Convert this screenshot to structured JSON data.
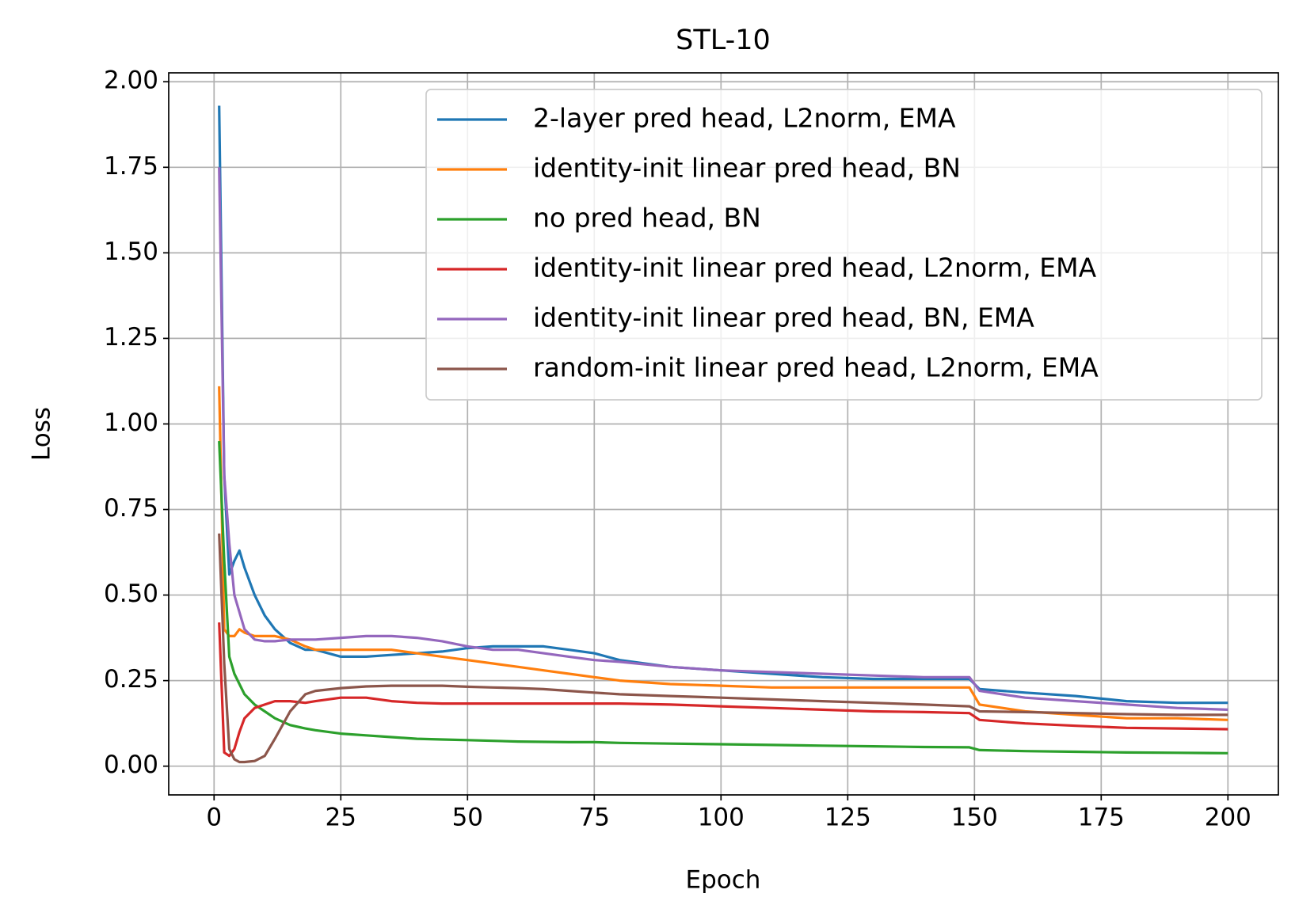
{
  "chart_data": {
    "type": "line",
    "title": "STL-10",
    "x_label": "Epoch",
    "y_label": "Loss",
    "x": [
      1,
      2,
      3,
      4,
      5,
      6,
      8,
      10,
      12,
      15,
      18,
      20,
      25,
      30,
      35,
      40,
      45,
      50,
      55,
      60,
      65,
      70,
      75,
      80,
      90,
      100,
      110,
      120,
      130,
      140,
      149,
      151,
      160,
      170,
      180,
      190,
      200
    ],
    "series": [
      {
        "name": "2-layer pred head, L2norm, EMA",
        "color": "#1f77b4",
        "values": [
          1.93,
          0.85,
          0.56,
          0.6,
          0.63,
          0.58,
          0.5,
          0.44,
          0.4,
          0.36,
          0.34,
          0.34,
          0.32,
          0.32,
          0.325,
          0.33,
          0.335,
          0.345,
          0.35,
          0.35,
          0.35,
          0.34,
          0.33,
          0.31,
          0.29,
          0.28,
          0.27,
          0.26,
          0.255,
          0.255,
          0.255,
          0.225,
          0.215,
          0.205,
          0.19,
          0.185,
          0.185
        ]
      },
      {
        "name": "identity-init linear pred head, BN",
        "color": "#ff7f0e",
        "values": [
          1.11,
          0.4,
          0.38,
          0.38,
          0.4,
          0.39,
          0.38,
          0.38,
          0.38,
          0.37,
          0.35,
          0.34,
          0.34,
          0.34,
          0.34,
          0.33,
          0.32,
          0.31,
          0.3,
          0.29,
          0.28,
          0.27,
          0.26,
          0.25,
          0.24,
          0.235,
          0.23,
          0.23,
          0.23,
          0.23,
          0.23,
          0.18,
          0.16,
          0.15,
          0.14,
          0.14,
          0.135
        ]
      },
      {
        "name": "no pred head, BN",
        "color": "#2ca02c",
        "values": [
          0.95,
          0.6,
          0.32,
          0.27,
          0.24,
          0.21,
          0.18,
          0.16,
          0.14,
          0.12,
          0.11,
          0.105,
          0.095,
          0.09,
          0.085,
          0.08,
          0.078,
          0.076,
          0.074,
          0.072,
          0.071,
          0.07,
          0.07,
          0.068,
          0.066,
          0.064,
          0.062,
          0.06,
          0.058,
          0.056,
          0.055,
          0.047,
          0.044,
          0.042,
          0.04,
          0.039,
          0.038
        ]
      },
      {
        "name": "identity-init linear pred head, L2norm, EMA",
        "color": "#d62728",
        "values": [
          0.42,
          0.04,
          0.03,
          0.05,
          0.1,
          0.14,
          0.17,
          0.18,
          0.19,
          0.19,
          0.185,
          0.19,
          0.2,
          0.2,
          0.19,
          0.185,
          0.183,
          0.183,
          0.183,
          0.183,
          0.183,
          0.183,
          0.183,
          0.183,
          0.18,
          0.175,
          0.17,
          0.165,
          0.16,
          0.158,
          0.155,
          0.135,
          0.125,
          0.118,
          0.112,
          0.11,
          0.108
        ]
      },
      {
        "name": "identity-init linear pred head, BN, EMA",
        "color": "#9467bd",
        "values": [
          1.75,
          0.85,
          0.65,
          0.5,
          0.45,
          0.4,
          0.37,
          0.365,
          0.365,
          0.37,
          0.37,
          0.37,
          0.375,
          0.38,
          0.38,
          0.375,
          0.365,
          0.35,
          0.34,
          0.34,
          0.33,
          0.32,
          0.31,
          0.305,
          0.29,
          0.28,
          0.275,
          0.27,
          0.265,
          0.26,
          0.26,
          0.22,
          0.2,
          0.19,
          0.18,
          0.17,
          0.165
        ]
      },
      {
        "name": "random-init linear pred head, L2norm, EMA",
        "color": "#8c564b",
        "values": [
          0.68,
          0.3,
          0.05,
          0.02,
          0.012,
          0.012,
          0.015,
          0.03,
          0.08,
          0.16,
          0.21,
          0.22,
          0.228,
          0.233,
          0.235,
          0.235,
          0.235,
          0.232,
          0.23,
          0.228,
          0.225,
          0.22,
          0.215,
          0.21,
          0.205,
          0.2,
          0.195,
          0.19,
          0.185,
          0.18,
          0.175,
          0.16,
          0.158,
          0.155,
          0.152,
          0.15,
          0.15
        ]
      }
    ],
    "xlim": [
      -8.95,
      209.95
    ],
    "ylim": [
      -0.084,
      2.026
    ],
    "xticks": [
      0,
      25,
      50,
      75,
      100,
      125,
      150,
      175,
      200
    ],
    "yticks": [
      {
        "value": 0,
        "label": "0.00"
      },
      {
        "value": 0.25,
        "label": "0.25"
      },
      {
        "value": 0.5,
        "label": "0.50"
      },
      {
        "value": 0.75,
        "label": "0.75"
      },
      {
        "value": 1,
        "label": "1.00"
      },
      {
        "value": 1.25,
        "label": "1.25"
      },
      {
        "value": 1.5,
        "label": "1.50"
      },
      {
        "value": 1.75,
        "label": "1.75"
      },
      {
        "value": 2,
        "label": "2.00"
      }
    ],
    "grid": true,
    "legend": "upper right"
  }
}
